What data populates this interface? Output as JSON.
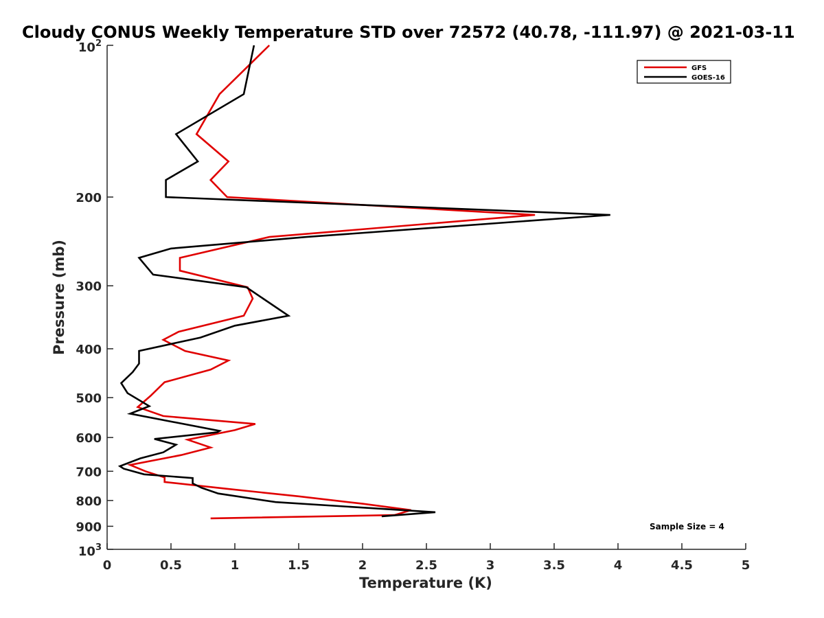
{
  "chart_data": {
    "type": "line",
    "title": "Cloudy CONUS Weekly Temperature STD over 72572 (40.78, -111.97) @ 2021-03-11",
    "xlabel": "Temperature (K)",
    "ylabel": "Pressure (mb)",
    "xlim": [
      0,
      5
    ],
    "ylim": [
      100,
      1000
    ],
    "y_scale": "log",
    "y_reversed": true,
    "grid": false,
    "legend_position": "top-right",
    "x_ticks": [
      "0",
      "0.5",
      "1",
      "1.5",
      "2",
      "2.5",
      "3",
      "3.5",
      "4",
      "4.5",
      "5"
    ],
    "x_tick_values": [
      0,
      0.5,
      1,
      1.5,
      2,
      2.5,
      3,
      3.5,
      4,
      4.5,
      5
    ],
    "y_ticks": [
      {
        "value": 100,
        "base": "10",
        "exp": "2"
      },
      {
        "value": 200,
        "label": "200"
      },
      {
        "value": 300,
        "label": "300"
      },
      {
        "value": 400,
        "label": "400"
      },
      {
        "value": 500,
        "label": "500"
      },
      {
        "value": 600,
        "label": "600"
      },
      {
        "value": 700,
        "label": "700"
      },
      {
        "value": 800,
        "label": "800"
      },
      {
        "value": 900,
        "label": "900"
      },
      {
        "value": 1000,
        "base": "10",
        "exp": "3"
      }
    ],
    "annotation": "Sample Size = 4",
    "series": [
      {
        "name": "GFS",
        "color": "#e00000",
        "points": [
          [
            1.27,
            100
          ],
          [
            0.88,
            125
          ],
          [
            0.7,
            150
          ],
          [
            0.95,
            170
          ],
          [
            0.81,
            185
          ],
          [
            0.94,
            200
          ],
          [
            3.35,
            217
          ],
          [
            1.27,
            240
          ],
          [
            0.57,
            264
          ],
          [
            0.57,
            280
          ],
          [
            1.1,
            302
          ],
          [
            1.14,
            318
          ],
          [
            1.07,
            344
          ],
          [
            0.56,
            370
          ],
          [
            0.44,
            384
          ],
          [
            0.61,
            404
          ],
          [
            0.95,
            422
          ],
          [
            0.81,
            440
          ],
          [
            0.45,
            466
          ],
          [
            0.34,
            496
          ],
          [
            0.24,
            522
          ],
          [
            0.44,
            544
          ],
          [
            1.16,
            564
          ],
          [
            1.0,
            580
          ],
          [
            0.63,
            606
          ],
          [
            0.81,
            628
          ],
          [
            0.58,
            650
          ],
          [
            0.18,
            680
          ],
          [
            0.3,
            700
          ],
          [
            0.45,
            720
          ],
          [
            0.45,
            735
          ],
          [
            0.93,
            758
          ],
          [
            1.5,
            785
          ],
          [
            2.0,
            812
          ],
          [
            2.38,
            836
          ],
          [
            2.25,
            855
          ],
          [
            0.81,
            868
          ]
        ]
      },
      {
        "name": "GOES-16",
        "color": "#000000",
        "points": [
          [
            1.15,
            100
          ],
          [
            1.07,
            125
          ],
          [
            0.54,
            150
          ],
          [
            0.71,
            170
          ],
          [
            0.46,
            185
          ],
          [
            0.46,
            200
          ],
          [
            3.94,
            217
          ],
          [
            1.56,
            240
          ],
          [
            0.5,
            253
          ],
          [
            0.25,
            264
          ],
          [
            0.36,
            285
          ],
          [
            1.09,
            302
          ],
          [
            1.42,
            344
          ],
          [
            1.0,
            360
          ],
          [
            0.73,
            380
          ],
          [
            0.25,
            404
          ],
          [
            0.25,
            428
          ],
          [
            0.2,
            445
          ],
          [
            0.11,
            468
          ],
          [
            0.16,
            490
          ],
          [
            0.33,
            520
          ],
          [
            0.18,
            538
          ],
          [
            0.88,
            582
          ],
          [
            0.86,
            586
          ],
          [
            0.37,
            604
          ],
          [
            0.54,
            620
          ],
          [
            0.44,
            642
          ],
          [
            0.26,
            660
          ],
          [
            0.1,
            684
          ],
          [
            0.13,
            692
          ],
          [
            0.29,
            710
          ],
          [
            0.67,
            722
          ],
          [
            0.67,
            740
          ],
          [
            0.74,
            755
          ],
          [
            0.87,
            775
          ],
          [
            1.32,
            806
          ],
          [
            2.57,
            844
          ],
          [
            2.15,
            860
          ]
        ]
      }
    ]
  }
}
